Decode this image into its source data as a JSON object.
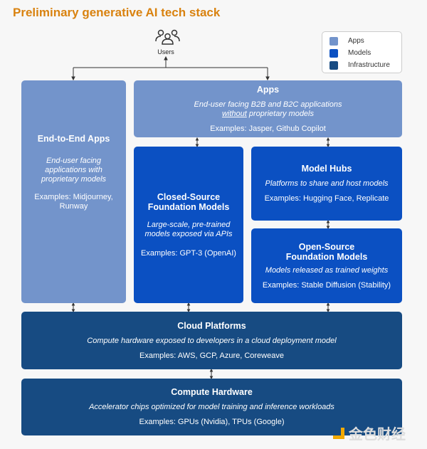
{
  "title": "Preliminary generative AI tech stack",
  "users": {
    "label": "Users",
    "icon": "users-icon"
  },
  "legend": [
    {
      "label": "Apps",
      "color": "#7394cb"
    },
    {
      "label": "Models",
      "color": "#0b50c2"
    },
    {
      "label": "Infrastructure",
      "color": "#174b82"
    }
  ],
  "end_to_end": {
    "title": "End-to-End Apps",
    "desc": "End-user facing applications with proprietary models",
    "examples": "Examples: Midjourney, Runway"
  },
  "apps": {
    "title": "Apps",
    "desc_a": "End-user facing B2B and B2C applications",
    "desc_u": "without",
    "desc_b": " proprietary models",
    "examples": "Examples: Jasper, Github Copilot"
  },
  "closed": {
    "title": "Closed-Source Foundation Models",
    "desc": "Large-scale, pre-trained models exposed via APIs",
    "examples": "Examples: GPT-3 (OpenAI)"
  },
  "hubs": {
    "title": "Model Hubs",
    "desc": "Platforms to share and host models",
    "examples": "Examples: Hugging Face, Replicate"
  },
  "open": {
    "title": "Open-Source Foundation Models",
    "desc": "Models released as trained weights",
    "examples": "Examples: Stable Diffusion (Stability)"
  },
  "cloud": {
    "title": "Cloud Platforms",
    "desc": "Compute hardware exposed to developers in a cloud deployment model",
    "examples": "Examples: AWS, GCP, Azure, Coreweave"
  },
  "compute": {
    "title": "Compute Hardware",
    "desc": "Accelerator chips optimized for model training and inference workloads",
    "examples": "Examples: GPUs (Nvidia), TPUs (Google)"
  },
  "watermark": "金色财经"
}
